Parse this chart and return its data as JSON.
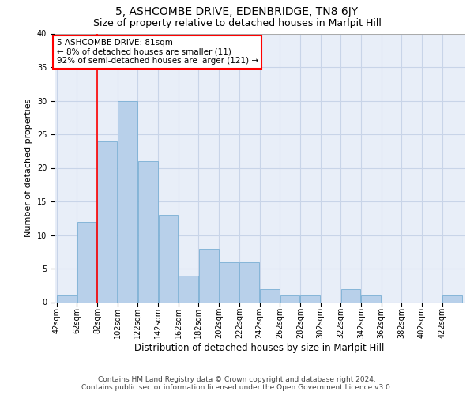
{
  "title": "5, ASHCOMBE DRIVE, EDENBRIDGE, TN8 6JY",
  "subtitle": "Size of property relative to detached houses in Marlpit Hill",
  "xlabel": "Distribution of detached houses by size in Marlpit Hill",
  "ylabel": "Number of detached properties",
  "footer_line1": "Contains HM Land Registry data © Crown copyright and database right 2024.",
  "footer_line2": "Contains public sector information licensed under the Open Government Licence v3.0.",
  "bins": [
    42,
    62,
    82,
    102,
    122,
    142,
    162,
    182,
    202,
    222,
    242,
    262,
    282,
    302,
    322,
    342,
    362,
    382,
    402,
    422,
    442
  ],
  "bar_values": [
    1,
    12,
    24,
    30,
    21,
    13,
    4,
    8,
    6,
    6,
    2,
    1,
    1,
    0,
    2,
    1,
    0,
    0,
    0,
    1
  ],
  "bar_color": "#b8d0ea",
  "bar_edgecolor": "#7aafd4",
  "grid_color": "#c8d4e8",
  "background_color": "#e8eef8",
  "annotation_box_text": "5 ASHCOMBE DRIVE: 81sqm\n← 8% of detached houses are smaller (11)\n92% of semi-detached houses are larger (121) →",
  "annotation_box_color": "white",
  "annotation_border_color": "red",
  "vline_x": 82,
  "vline_color": "red",
  "ylim": [
    0,
    40
  ],
  "yticks": [
    0,
    5,
    10,
    15,
    20,
    25,
    30,
    35,
    40
  ],
  "title_fontsize": 10,
  "subtitle_fontsize": 9,
  "xlabel_fontsize": 8.5,
  "ylabel_fontsize": 8,
  "tick_fontsize": 7,
  "footer_fontsize": 6.5,
  "annotation_fontsize": 7.5
}
